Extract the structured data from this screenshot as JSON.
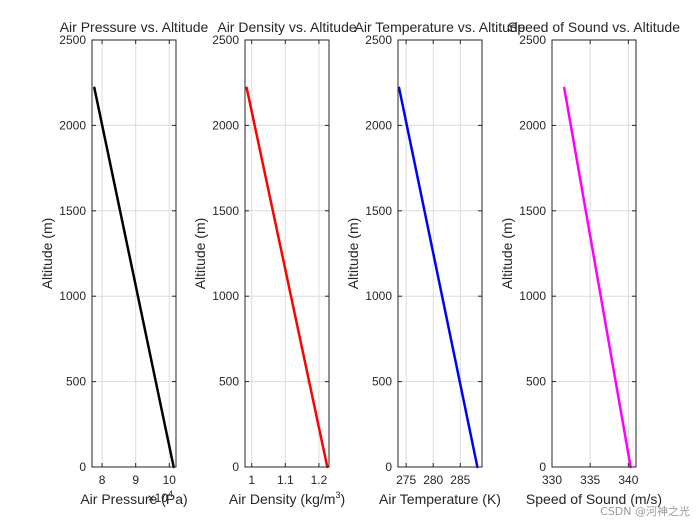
{
  "chart_data": [
    {
      "type": "line",
      "title": "Air Pressure vs. Altitude",
      "xlabel": "Air Pressure (Pa)",
      "x_exponent": {
        "base": "×10",
        "power": "4"
      },
      "ylabel": "Altitude (m)",
      "xlim": [
        7.7,
        10.2
      ],
      "ylim": [
        0,
        2500
      ],
      "xticks": [
        8,
        9,
        10
      ],
      "xtick_labels": [
        "8",
        "9",
        "10"
      ],
      "yticks": [
        0,
        500,
        1000,
        1500,
        2000,
        2500
      ],
      "ytick_labels": [
        "0",
        "500",
        "1000",
        "1500",
        "2000",
        "2500"
      ],
      "grid": true,
      "color": "#000000",
      "series": [
        {
          "name": "Air Pressure",
          "x": [
            10.13,
            7.77
          ],
          "y": [
            0,
            2220
          ]
        }
      ]
    },
    {
      "type": "line",
      "title": "Air Density vs. Altitude",
      "xlabel": "Air Density (kg/m",
      "xlabel_sup": "3",
      "xlabel_end": ")",
      "ylabel": "Altitude (m)",
      "xlim": [
        0.98,
        1.23
      ],
      "ylim": [
        0,
        2500
      ],
      "xticks": [
        1.0,
        1.1,
        1.2
      ],
      "xtick_labels": [
        "1",
        "1.1",
        "1.2"
      ],
      "yticks": [
        0,
        500,
        1000,
        1500,
        2000,
        2500
      ],
      "ytick_labels": [
        "0",
        "500",
        "1000",
        "1500",
        "2000",
        "2500"
      ],
      "grid": true,
      "color": "#ff0000",
      "series": [
        {
          "name": "Air Density",
          "x": [
            1.225,
            0.985
          ],
          "y": [
            0,
            2220
          ]
        }
      ]
    },
    {
      "type": "line",
      "title": "Air Temperature vs. Altitude",
      "xlabel": "Air Temperature (K)",
      "ylabel": "Altitude (m)",
      "xlim": [
        273.5,
        289
      ],
      "ylim": [
        0,
        2500
      ],
      "xticks": [
        275,
        280,
        285
      ],
      "xtick_labels": [
        "275",
        "280",
        "285"
      ],
      "yticks": [
        0,
        500,
        1000,
        1500,
        2000,
        2500
      ],
      "ytick_labels": [
        "0",
        "500",
        "1000",
        "1500",
        "2000",
        "2500"
      ],
      "grid": true,
      "color": "#0000ff",
      "series": [
        {
          "name": "Air Temperature",
          "x": [
            288.15,
            273.7
          ],
          "y": [
            0,
            2220
          ]
        }
      ]
    },
    {
      "type": "line",
      "title": "Speed of Sound vs. Altitude",
      "xlabel": "Speed of Sound (m/s)",
      "ylabel": "Altitude (m)",
      "xlim": [
        330,
        341
      ],
      "ylim": [
        0,
        2500
      ],
      "xticks": [
        330,
        335,
        340
      ],
      "xtick_labels": [
        "330",
        "335",
        "340"
      ],
      "yticks": [
        0,
        500,
        1000,
        1500,
        2000,
        2500
      ],
      "ytick_labels": [
        "0",
        "500",
        "1000",
        "1500",
        "2000",
        "2500"
      ],
      "grid": true,
      "color": "#ff00ff",
      "series": [
        {
          "name": "Speed of Sound",
          "x": [
            340.3,
            331.6
          ],
          "y": [
            0,
            2220
          ]
        }
      ]
    }
  ],
  "watermark": "CSDN @河神之光"
}
